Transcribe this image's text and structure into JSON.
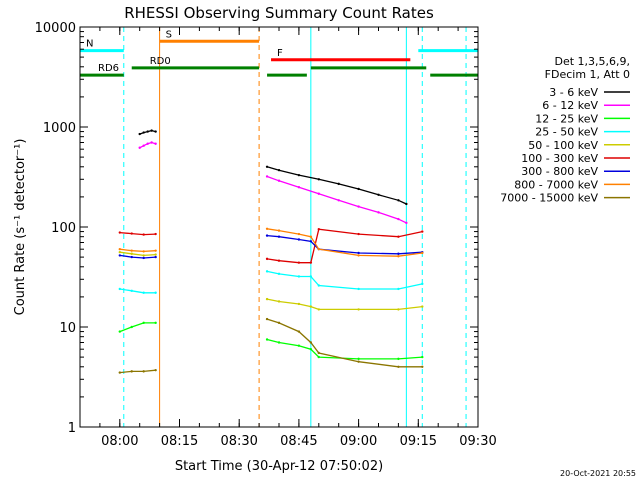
{
  "chart_data": {
    "type": "line",
    "title": "RHESSI Observing Summary Count Rates",
    "xlabel": "Start Time (30-Apr-12 07:50:02)",
    "ylabel": "Count Rate (s⁻¹ detector⁻¹)",
    "yscale": "log",
    "ylim": [
      1,
      10000
    ],
    "y_ticks": [
      1,
      10,
      100,
      1000,
      10000
    ],
    "y_tick_labels": [
      "1",
      "10",
      "100",
      "1000",
      "10000"
    ],
    "x_ticks": [
      "08:00",
      "08:15",
      "08:30",
      "08:45",
      "09:00",
      "09:15",
      "09:30"
    ],
    "legend_header": [
      "Det 1,3,5,6,9,",
      "FDecim 1, Att 0"
    ],
    "legend_position": "right",
    "footer_date": "20-Oct-2021 20:55",
    "series": [
      {
        "name": "3 - 6 keV",
        "color": "#000000",
        "segments": [
          {
            "t": [
              "08:05",
              "08:06",
              "08:07",
              "08:08",
              "08:09"
            ],
            "v": [
              850,
              880,
              900,
              920,
              900
            ]
          },
          {
            "t": [
              "08:37",
              "08:40",
              "08:45",
              "08:50",
              "08:55",
              "09:00",
              "09:05",
              "09:10",
              "09:12"
            ],
            "v": [
              400,
              370,
              330,
              300,
              270,
              240,
              210,
              185,
              170
            ]
          }
        ]
      },
      {
        "name": "6 - 12 keV",
        "color": "#ff00ff",
        "segments": [
          {
            "t": [
              "08:05",
              "08:06",
              "08:07",
              "08:08",
              "08:09"
            ],
            "v": [
              620,
              650,
              680,
              700,
              680
            ]
          },
          {
            "t": [
              "08:37",
              "08:40",
              "08:45",
              "08:50",
              "08:55",
              "09:00",
              "09:05",
              "09:10",
              "09:12"
            ],
            "v": [
              320,
              290,
              250,
              215,
              185,
              160,
              140,
              120,
              110
            ]
          }
        ]
      },
      {
        "name": "12 - 25 keV",
        "color": "#00ff00",
        "segments": [
          {
            "t": [
              "08:00",
              "08:03",
              "08:06",
              "08:09"
            ],
            "v": [
              9,
              10,
              11,
              11
            ]
          },
          {
            "t": [
              "08:37",
              "08:40",
              "08:45",
              "08:48",
              "08:50",
              "09:00",
              "09:10",
              "09:16"
            ],
            "v": [
              7.5,
              7,
              6.5,
              6,
              5,
              4.8,
              4.8,
              5
            ]
          }
        ]
      },
      {
        "name": "25 - 50 keV",
        "color": "#00ffff",
        "segments": [
          {
            "t": [
              "08:00",
              "08:03",
              "08:06",
              "08:09"
            ],
            "v": [
              24,
              23,
              22,
              22
            ]
          },
          {
            "t": [
              "08:37",
              "08:40",
              "08:45",
              "08:48",
              "08:50",
              "09:00",
              "09:10",
              "09:16"
            ],
            "v": [
              36,
              34,
              32,
              32,
              26,
              24,
              24,
              27
            ]
          }
        ]
      },
      {
        "name": "50 - 100 keV",
        "color": "#cccc00",
        "segments": [
          {
            "t": [
              "08:00",
              "08:03",
              "08:06",
              "08:09"
            ],
            "v": [
              56,
              54,
              52,
              53
            ]
          },
          {
            "t": [
              "08:37",
              "08:40",
              "08:45",
              "08:48",
              "08:50",
              "09:00",
              "09:10",
              "09:16"
            ],
            "v": [
              19,
              18,
              17,
              16,
              15,
              15,
              15,
              16
            ]
          }
        ]
      },
      {
        "name": "100 - 300 keV",
        "color": "#dd0000",
        "segments": [
          {
            "t": [
              "08:00",
              "08:03",
              "08:06",
              "08:09"
            ],
            "v": [
              88,
              86,
              84,
              85
            ]
          },
          {
            "t": [
              "08:37",
              "08:40",
              "08:45",
              "08:48",
              "08:50",
              "09:00",
              "09:10",
              "09:16"
            ],
            "v": [
              48,
              46,
              44,
              44,
              95,
              85,
              80,
              90
            ]
          }
        ]
      },
      {
        "name": "300 - 800 keV",
        "color": "#0000dd",
        "segments": [
          {
            "t": [
              "08:00",
              "08:03",
              "08:06",
              "08:09"
            ],
            "v": [
              52,
              50,
              49,
              50
            ]
          },
          {
            "t": [
              "08:37",
              "08:40",
              "08:45",
              "08:48",
              "08:50",
              "09:00",
              "09:10",
              "09:16"
            ],
            "v": [
              82,
              80,
              75,
              72,
              60,
              55,
              54,
              56
            ]
          }
        ]
      },
      {
        "name": "800 - 7000 keV",
        "color": "#ff8000",
        "segments": [
          {
            "t": [
              "08:00",
              "08:03",
              "08:06",
              "08:09"
            ],
            "v": [
              60,
              58,
              57,
              58
            ]
          },
          {
            "t": [
              "08:37",
              "08:40",
              "08:45",
              "08:48",
              "08:50",
              "09:00",
              "09:10",
              "09:16"
            ],
            "v": [
              96,
              92,
              85,
              80,
              60,
              52,
              51,
              55
            ]
          }
        ]
      },
      {
        "name": "7000 - 15000 keV",
        "color": "#8b7500",
        "segments": [
          {
            "t": [
              "08:00",
              "08:03",
              "08:06",
              "08:09"
            ],
            "v": [
              3.5,
              3.6,
              3.6,
              3.7
            ]
          },
          {
            "t": [
              "08:37",
              "08:40",
              "08:45",
              "08:48",
              "08:50",
              "09:00",
              "09:10",
              "09:16"
            ],
            "v": [
              12,
              11,
              9,
              7,
              5.5,
              4.5,
              4,
              4
            ]
          }
        ]
      }
    ],
    "vertical_markers": [
      {
        "t": "07:50",
        "color": "#00ffff",
        "style": "solid"
      },
      {
        "t": "08:01",
        "color": "#00ffff",
        "style": "dashed"
      },
      {
        "t": "08:10",
        "color": "#ff8000",
        "style": "solid"
      },
      {
        "t": "08:35",
        "color": "#ff8000",
        "style": "dashed"
      },
      {
        "t": "08:48",
        "color": "#00ffff",
        "style": "solid"
      },
      {
        "t": "09:12",
        "color": "#00ffff",
        "style": "solid"
      },
      {
        "t": "09:16",
        "color": "#00ffff",
        "style": "dashed"
      },
      {
        "t": "09:27",
        "color": "#00ffff",
        "style": "dashed"
      }
    ],
    "flag_bars": [
      {
        "label": "N",
        "color": "#00ffff",
        "y": 5800,
        "spans": [
          [
            "07:50",
            "08:01"
          ],
          [
            "09:15",
            "09:30"
          ]
        ]
      },
      {
        "label": "S",
        "color": "#ff8000",
        "y": 7200,
        "spans": [
          [
            "08:10",
            "08:35"
          ]
        ]
      },
      {
        "label": "F",
        "color": "#ff0000",
        "y": 4700,
        "spans": [
          [
            "08:38",
            "09:13"
          ]
        ]
      },
      {
        "label": "RD0",
        "color": "#008000",
        "y": 3900,
        "spans": [
          [
            "08:03",
            "08:35"
          ],
          [
            "08:48",
            "09:17"
          ]
        ]
      },
      {
        "label": "RD6",
        "color": "#008000",
        "y": 3300,
        "spans": [
          [
            "07:50",
            "08:01"
          ],
          [
            "08:37",
            "08:47"
          ],
          [
            "09:18",
            "09:30"
          ]
        ]
      }
    ]
  }
}
